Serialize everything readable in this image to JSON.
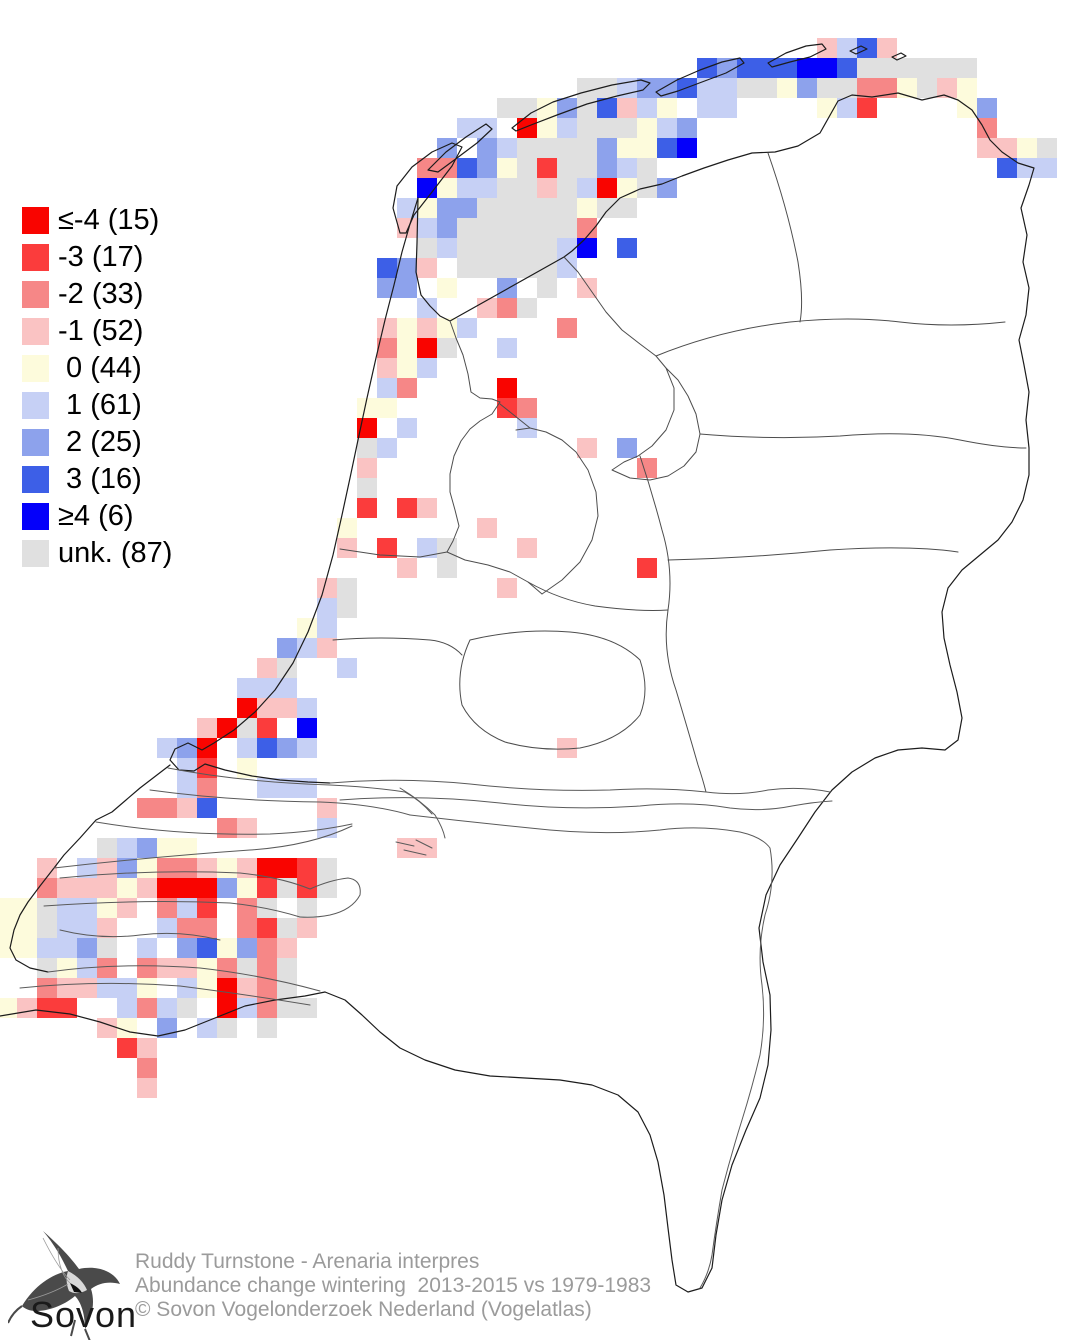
{
  "legend": {
    "items": [
      {
        "label": "≤-4 (15)",
        "value": "≤-4",
        "count": 15,
        "color": "#f90400"
      },
      {
        "label": "-3 (17)",
        "value": "-3",
        "count": 17,
        "color": "#fb3c3c"
      },
      {
        "label": "-2 (33)",
        "value": "-2",
        "count": 33,
        "color": "#f68787"
      },
      {
        "label": "-1 (52)",
        "value": "-1",
        "count": 52,
        "color": "#fac3c3"
      },
      {
        "label": " 0 (44)",
        "value": "0",
        "count": 44,
        "color": "#fdfbdc"
      },
      {
        "label": " 1 (61)",
        "value": "1",
        "count": 61,
        "color": "#c6d0f5"
      },
      {
        "label": " 2 (25)",
        "value": "2",
        "count": 25,
        "color": "#8da2ec"
      },
      {
        "label": " 3 (16)",
        "value": "3",
        "count": 16,
        "color": "#3d5fe7"
      },
      {
        "label": "≥4 (6)",
        "value": "≥4",
        "count": 6,
        "color": "#0400fa"
      },
      {
        "label": "unk. (87)",
        "value": "unk.",
        "count": 87,
        "color": "#e0e0e0"
      }
    ]
  },
  "footer": {
    "line1": "Ruddy Turnstone - Arenaria interpres",
    "line2": "Abundance change wintering  2013-2015 vs 1979-1983",
    "line3": "© Sovon Vogelonderzoek Nederland (Vogelatlas)",
    "logo_text": "Sovon"
  },
  "grid": {
    "cell_size": 20,
    "x_formula": "col*20-3",
    "y_formula": "row*20-2"
  },
  "chart_data": {
    "type": "heatmap",
    "title": "Ruddy Turnstone - Arenaria interpres",
    "subtitle": "Abundance change wintering  2013-2015 vs 1979-1983",
    "source": "© Sovon Vogelonderzoek Nederland (Vogelatlas)",
    "categories": [
      "≤-4",
      "-3",
      "-2",
      "-1",
      "0",
      "1",
      "2",
      "3",
      "≥4",
      "unk."
    ],
    "counts": [
      15,
      17,
      33,
      52,
      44,
      61,
      25,
      16,
      6,
      87
    ],
    "colors": [
      "#f90400",
      "#fb3c3c",
      "#f68787",
      "#fac3c3",
      "#fdfbdc",
      "#c6d0f5",
      "#8da2ec",
      "#3d5fe7",
      "#0400fa",
      "#e0e0e0"
    ]
  },
  "map_cells": [
    [
      41,
      2,
      3
    ],
    [
      42,
      2,
      5
    ],
    [
      43,
      2,
      7
    ],
    [
      44,
      2,
      3
    ],
    [
      35,
      3,
      7
    ],
    [
      36,
      3,
      6
    ],
    [
      37,
      3,
      7
    ],
    [
      38,
      3,
      7
    ],
    [
      39,
      3,
      7
    ],
    [
      40,
      3,
      8
    ],
    [
      41,
      3,
      8
    ],
    [
      42,
      3,
      7
    ],
    [
      43,
      3,
      9
    ],
    [
      44,
      3,
      9
    ],
    [
      45,
      3,
      9
    ],
    [
      46,
      3,
      9
    ],
    [
      47,
      3,
      9
    ],
    [
      48,
      3,
      9
    ],
    [
      29,
      4,
      9
    ],
    [
      30,
      4,
      9
    ],
    [
      31,
      4,
      5
    ],
    [
      32,
      4,
      6
    ],
    [
      33,
      4,
      6
    ],
    [
      34,
      4,
      7
    ],
    [
      35,
      4,
      5
    ],
    [
      36,
      4,
      5
    ],
    [
      37,
      4,
      9
    ],
    [
      38,
      4,
      9
    ],
    [
      39,
      4,
      4
    ],
    [
      40,
      4,
      6
    ],
    [
      41,
      4,
      9
    ],
    [
      42,
      4,
      9
    ],
    [
      43,
      4,
      2
    ],
    [
      44,
      4,
      2
    ],
    [
      45,
      4,
      4
    ],
    [
      46,
      4,
      9
    ],
    [
      47,
      4,
      3
    ],
    [
      48,
      4,
      4
    ],
    [
      25,
      5,
      9
    ],
    [
      26,
      5,
      9
    ],
    [
      27,
      5,
      4
    ],
    [
      28,
      5,
      6
    ],
    [
      29,
      5,
      9
    ],
    [
      30,
      5,
      7
    ],
    [
      31,
      5,
      3
    ],
    [
      32,
      5,
      5
    ],
    [
      33,
      5,
      4
    ],
    [
      35,
      5,
      5
    ],
    [
      36,
      5,
      5
    ],
    [
      41,
      5,
      4
    ],
    [
      42,
      5,
      5
    ],
    [
      43,
      5,
      1
    ],
    [
      48,
      5,
      4
    ],
    [
      49,
      5,
      6
    ],
    [
      23,
      6,
      5
    ],
    [
      24,
      6,
      5
    ],
    [
      26,
      6,
      0
    ],
    [
      27,
      6,
      4
    ],
    [
      28,
      6,
      5
    ],
    [
      29,
      6,
      9
    ],
    [
      30,
      6,
      9
    ],
    [
      31,
      6,
      9
    ],
    [
      32,
      6,
      4
    ],
    [
      33,
      6,
      5
    ],
    [
      34,
      6,
      6
    ],
    [
      49,
      6,
      2
    ],
    [
      22,
      7,
      6
    ],
    [
      24,
      7,
      6
    ],
    [
      25,
      7,
      5
    ],
    [
      26,
      7,
      9
    ],
    [
      27,
      7,
      9
    ],
    [
      28,
      7,
      9
    ],
    [
      29,
      7,
      9
    ],
    [
      30,
      7,
      6
    ],
    [
      31,
      7,
      4
    ],
    [
      32,
      7,
      4
    ],
    [
      33,
      7,
      7
    ],
    [
      34,
      7,
      8
    ],
    [
      49,
      7,
      3
    ],
    [
      50,
      7,
      3
    ],
    [
      51,
      7,
      4
    ],
    [
      52,
      7,
      9
    ],
    [
      21,
      8,
      2
    ],
    [
      22,
      8,
      2
    ],
    [
      23,
      8,
      7
    ],
    [
      24,
      8,
      6
    ],
    [
      25,
      8,
      4
    ],
    [
      26,
      8,
      9
    ],
    [
      27,
      8,
      1
    ],
    [
      28,
      8,
      9
    ],
    [
      29,
      8,
      9
    ],
    [
      30,
      8,
      6
    ],
    [
      31,
      8,
      5
    ],
    [
      32,
      8,
      9
    ],
    [
      50,
      8,
      7
    ],
    [
      51,
      8,
      5
    ],
    [
      52,
      8,
      5
    ],
    [
      21,
      9,
      8
    ],
    [
      22,
      9,
      4
    ],
    [
      23,
      9,
      5
    ],
    [
      24,
      9,
      5
    ],
    [
      25,
      9,
      9
    ],
    [
      26,
      9,
      9
    ],
    [
      27,
      9,
      3
    ],
    [
      28,
      9,
      9
    ],
    [
      29,
      9,
      5
    ],
    [
      30,
      9,
      0
    ],
    [
      31,
      9,
      4
    ],
    [
      32,
      9,
      9
    ],
    [
      33,
      9,
      6
    ],
    [
      20,
      10,
      5
    ],
    [
      21,
      10,
      4
    ],
    [
      22,
      10,
      6
    ],
    [
      23,
      10,
      6
    ],
    [
      24,
      10,
      9
    ],
    [
      25,
      10,
      9
    ],
    [
      26,
      10,
      9
    ],
    [
      27,
      10,
      9
    ],
    [
      28,
      10,
      9
    ],
    [
      29,
      10,
      4
    ],
    [
      30,
      10,
      9
    ],
    [
      31,
      10,
      9
    ],
    [
      20,
      11,
      3
    ],
    [
      21,
      11,
      5
    ],
    [
      22,
      11,
      6
    ],
    [
      23,
      11,
      9
    ],
    [
      24,
      11,
      9
    ],
    [
      25,
      11,
      9
    ],
    [
      26,
      11,
      9
    ],
    [
      27,
      11,
      9
    ],
    [
      28,
      11,
      9
    ],
    [
      29,
      11,
      2
    ],
    [
      21,
      12,
      9
    ],
    [
      22,
      12,
      5
    ],
    [
      23,
      12,
      9
    ],
    [
      24,
      12,
      9
    ],
    [
      25,
      12,
      9
    ],
    [
      26,
      12,
      9
    ],
    [
      27,
      12,
      9
    ],
    [
      28,
      12,
      5
    ],
    [
      29,
      12,
      8
    ],
    [
      31,
      12,
      7
    ],
    [
      19,
      13,
      7
    ],
    [
      20,
      13,
      6
    ],
    [
      21,
      13,
      3
    ],
    [
      23,
      13,
      9
    ],
    [
      24,
      13,
      9
    ],
    [
      25,
      13,
      9
    ],
    [
      26,
      13,
      9
    ],
    [
      27,
      13,
      9
    ],
    [
      28,
      13,
      5
    ],
    [
      19,
      14,
      6
    ],
    [
      20,
      14,
      6
    ],
    [
      22,
      14,
      4
    ],
    [
      25,
      14,
      6
    ],
    [
      27,
      14,
      9
    ],
    [
      29,
      14,
      3
    ],
    [
      21,
      15,
      5
    ],
    [
      24,
      15,
      3
    ],
    [
      25,
      15,
      2
    ],
    [
      26,
      15,
      9
    ],
    [
      19,
      16,
      3
    ],
    [
      20,
      16,
      4
    ],
    [
      21,
      16,
      3
    ],
    [
      22,
      16,
      4
    ],
    [
      23,
      16,
      5
    ],
    [
      28,
      16,
      2
    ],
    [
      19,
      17,
      2
    ],
    [
      20,
      17,
      4
    ],
    [
      21,
      17,
      0
    ],
    [
      22,
      17,
      9
    ],
    [
      25,
      17,
      5
    ],
    [
      19,
      18,
      3
    ],
    [
      20,
      18,
      4
    ],
    [
      21,
      18,
      5
    ],
    [
      19,
      19,
      5
    ],
    [
      20,
      19,
      2
    ],
    [
      25,
      19,
      0
    ],
    [
      18,
      20,
      4
    ],
    [
      19,
      20,
      4
    ],
    [
      25,
      20,
      1
    ],
    [
      26,
      20,
      2
    ],
    [
      18,
      21,
      0
    ],
    [
      20,
      21,
      5
    ],
    [
      26,
      21,
      5
    ],
    [
      18,
      22,
      9
    ],
    [
      19,
      22,
      5
    ],
    [
      29,
      22,
      3
    ],
    [
      31,
      22,
      6
    ],
    [
      18,
      23,
      3
    ],
    [
      32,
      23,
      2
    ],
    [
      18,
      24,
      9
    ],
    [
      18,
      25,
      1
    ],
    [
      20,
      25,
      1
    ],
    [
      21,
      25,
      3
    ],
    [
      17,
      26,
      4
    ],
    [
      24,
      26,
      3
    ],
    [
      17,
      27,
      3
    ],
    [
      19,
      27,
      1
    ],
    [
      21,
      27,
      5
    ],
    [
      22,
      27,
      9
    ],
    [
      26,
      27,
      3
    ],
    [
      20,
      28,
      3
    ],
    [
      22,
      28,
      9
    ],
    [
      32,
      28,
      1
    ],
    [
      16,
      29,
      3
    ],
    [
      17,
      29,
      9
    ],
    [
      25,
      29,
      3
    ],
    [
      16,
      30,
      5
    ],
    [
      17,
      30,
      9
    ],
    [
      15,
      31,
      4
    ],
    [
      16,
      31,
      5
    ],
    [
      14,
      32,
      6
    ],
    [
      15,
      32,
      5
    ],
    [
      16,
      32,
      3
    ],
    [
      13,
      33,
      3
    ],
    [
      14,
      33,
      9
    ],
    [
      17,
      33,
      5
    ],
    [
      12,
      34,
      5
    ],
    [
      13,
      34,
      5
    ],
    [
      14,
      34,
      5
    ],
    [
      12,
      35,
      0
    ],
    [
      13,
      35,
      3
    ],
    [
      14,
      35,
      3
    ],
    [
      15,
      35,
      5
    ],
    [
      10,
      36,
      3
    ],
    [
      11,
      36,
      0
    ],
    [
      12,
      36,
      9
    ],
    [
      13,
      36,
      1
    ],
    [
      15,
      36,
      8
    ],
    [
      8,
      37,
      5
    ],
    [
      9,
      37,
      6
    ],
    [
      10,
      37,
      0
    ],
    [
      12,
      37,
      5
    ],
    [
      13,
      37,
      7
    ],
    [
      14,
      37,
      6
    ],
    [
      15,
      37,
      5
    ],
    [
      28,
      37,
      3
    ],
    [
      9,
      38,
      5
    ],
    [
      10,
      38,
      1
    ],
    [
      12,
      38,
      4
    ],
    [
      9,
      39,
      5
    ],
    [
      10,
      39,
      2
    ],
    [
      13,
      39,
      5
    ],
    [
      14,
      39,
      5
    ],
    [
      15,
      39,
      5
    ],
    [
      7,
      40,
      2
    ],
    [
      8,
      40,
      2
    ],
    [
      9,
      40,
      3
    ],
    [
      10,
      40,
      7
    ],
    [
      16,
      40,
      3
    ],
    [
      11,
      41,
      2
    ],
    [
      12,
      41,
      3
    ],
    [
      16,
      41,
      5
    ],
    [
      5,
      42,
      9
    ],
    [
      6,
      42,
      5
    ],
    [
      7,
      42,
      6
    ],
    [
      8,
      42,
      4
    ],
    [
      9,
      42,
      4
    ],
    [
      20,
      42,
      3
    ],
    [
      21,
      42,
      3
    ],
    [
      2,
      43,
      3
    ],
    [
      4,
      43,
      5
    ],
    [
      5,
      43,
      3
    ],
    [
      6,
      43,
      6
    ],
    [
      7,
      43,
      4
    ],
    [
      8,
      43,
      2
    ],
    [
      9,
      43,
      2
    ],
    [
      10,
      43,
      3
    ],
    [
      11,
      43,
      4
    ],
    [
      12,
      43,
      3
    ],
    [
      13,
      43,
      0
    ],
    [
      14,
      43,
      0
    ],
    [
      15,
      43,
      1
    ],
    [
      16,
      43,
      9
    ],
    [
      2,
      44,
      2
    ],
    [
      3,
      44,
      3
    ],
    [
      4,
      44,
      3
    ],
    [
      5,
      44,
      3
    ],
    [
      6,
      44,
      4
    ],
    [
      7,
      44,
      3
    ],
    [
      8,
      44,
      0
    ],
    [
      9,
      44,
      0
    ],
    [
      10,
      44,
      0
    ],
    [
      11,
      44,
      6
    ],
    [
      12,
      44,
      4
    ],
    [
      13,
      44,
      1
    ],
    [
      14,
      44,
      9
    ],
    [
      15,
      44,
      1
    ],
    [
      16,
      44,
      9
    ],
    [
      0,
      45,
      4
    ],
    [
      1,
      45,
      4
    ],
    [
      2,
      45,
      9
    ],
    [
      3,
      45,
      5
    ],
    [
      4,
      45,
      5
    ],
    [
      5,
      45,
      4
    ],
    [
      6,
      45,
      3
    ],
    [
      8,
      45,
      2
    ],
    [
      9,
      45,
      5
    ],
    [
      10,
      45,
      1
    ],
    [
      12,
      45,
      2
    ],
    [
      13,
      45,
      9
    ],
    [
      15,
      45,
      9
    ],
    [
      0,
      46,
      4
    ],
    [
      1,
      46,
      4
    ],
    [
      2,
      46,
      9
    ],
    [
      3,
      46,
      5
    ],
    [
      4,
      46,
      5
    ],
    [
      5,
      46,
      3
    ],
    [
      8,
      46,
      5
    ],
    [
      9,
      46,
      2
    ],
    [
      10,
      46,
      2
    ],
    [
      12,
      46,
      2
    ],
    [
      13,
      46,
      1
    ],
    [
      14,
      46,
      9
    ],
    [
      15,
      46,
      3
    ],
    [
      0,
      47,
      4
    ],
    [
      1,
      47,
      4
    ],
    [
      2,
      47,
      5
    ],
    [
      3,
      47,
      5
    ],
    [
      4,
      47,
      6
    ],
    [
      5,
      47,
      9
    ],
    [
      7,
      47,
      5
    ],
    [
      9,
      47,
      6
    ],
    [
      10,
      47,
      7
    ],
    [
      11,
      47,
      4
    ],
    [
      12,
      47,
      6
    ],
    [
      13,
      47,
      2
    ],
    [
      14,
      47,
      3
    ],
    [
      2,
      48,
      9
    ],
    [
      3,
      48,
      4
    ],
    [
      4,
      48,
      5
    ],
    [
      5,
      48,
      2
    ],
    [
      7,
      48,
      2
    ],
    [
      8,
      48,
      3
    ],
    [
      9,
      48,
      3
    ],
    [
      10,
      48,
      4
    ],
    [
      11,
      48,
      2
    ],
    [
      12,
      48,
      9
    ],
    [
      13,
      48,
      2
    ],
    [
      14,
      48,
      9
    ],
    [
      2,
      49,
      2
    ],
    [
      3,
      49,
      3
    ],
    [
      4,
      49,
      3
    ],
    [
      5,
      49,
      5
    ],
    [
      6,
      49,
      5
    ],
    [
      7,
      49,
      4
    ],
    [
      9,
      49,
      5
    ],
    [
      10,
      49,
      4
    ],
    [
      11,
      49,
      0
    ],
    [
      12,
      49,
      3
    ],
    [
      13,
      49,
      2
    ],
    [
      14,
      49,
      9
    ],
    [
      0,
      50,
      4
    ],
    [
      1,
      50,
      3
    ],
    [
      2,
      50,
      1
    ],
    [
      3,
      50,
      1
    ],
    [
      6,
      50,
      5
    ],
    [
      7,
      50,
      2
    ],
    [
      8,
      50,
      5
    ],
    [
      9,
      50,
      9
    ],
    [
      11,
      50,
      0
    ],
    [
      12,
      50,
      5
    ],
    [
      13,
      50,
      2
    ],
    [
      14,
      50,
      9
    ],
    [
      15,
      50,
      9
    ],
    [
      5,
      51,
      3
    ],
    [
      6,
      51,
      4
    ],
    [
      8,
      51,
      6
    ],
    [
      10,
      51,
      5
    ],
    [
      11,
      51,
      9
    ],
    [
      13,
      51,
      9
    ],
    [
      6,
      52,
      1
    ],
    [
      7,
      52,
      3
    ],
    [
      7,
      53,
      2
    ],
    [
      7,
      54,
      3
    ]
  ]
}
